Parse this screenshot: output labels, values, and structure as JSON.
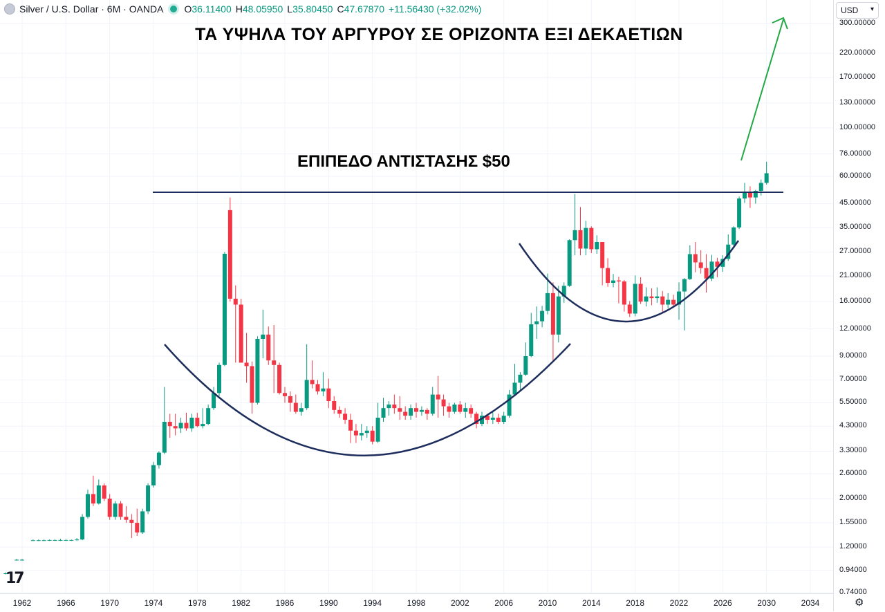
{
  "legend": {
    "symbol": "Silver / U.S. Dollar · 6M · OANDA",
    "o_key": "O",
    "o_val": "36.11400",
    "h_key": "H",
    "h_val": "48.05950",
    "l_key": "L",
    "l_val": "35.80450",
    "c_key": "C",
    "c_val": "47.67870",
    "change": "+11.56430 (+32.02%)"
  },
  "currency": "USD",
  "annotations": {
    "title": "ΤΑ ΥΨΗΛΑ ΤΟΥ ΑΡΓΥΡΟΥ ΣΕ ΟΡΙΖΟΝΤΑ ΕΞΙ ΔΕΚΑΕΤΙΩΝ",
    "resistance_label": "ΕΠΙΠΕΔΟ ΑΝΤΙΣΤΑΣΗΣ $50"
  },
  "colors": {
    "up": "#089981",
    "down": "#f23645",
    "line": "#1e2e5c",
    "arrow": "#22a845",
    "grid": "#f0f3fa"
  },
  "icons": {
    "logo": "tradingview-logo-icon",
    "settings": "gear-icon",
    "dropdown": "chevron-down-icon"
  },
  "chart_data": {
    "type": "candlestick",
    "scale": "log",
    "ylim": [
      0.72,
      320
    ],
    "xlim": [
      1960,
      2036
    ],
    "y_ticks": [
      "300.00000",
      "220.00000",
      "170.00000",
      "130.00000",
      "100.00000",
      "76.00000",
      "60.00000",
      "45.00000",
      "35.00000",
      "27.00000",
      "21.00000",
      "16.00000",
      "12.00000",
      "9.00000",
      "7.00000",
      "5.50000",
      "4.30000",
      "3.30000",
      "2.60000",
      "2.00000",
      "1.55000",
      "1.20000",
      "0.94000",
      "0.74000"
    ],
    "x_ticks": [
      "1962",
      "1966",
      "1970",
      "1974",
      "1978",
      "1982",
      "1986",
      "1990",
      "1994",
      "1998",
      "2002",
      "2006",
      "2010",
      "2014",
      "2018",
      "2022",
      "2026",
      "2030",
      "2034"
    ],
    "resistance_level": 50,
    "candles": [
      {
        "t": 1959.5,
        "o": 0.91,
        "h": 0.92,
        "l": 0.9,
        "c": 0.91
      },
      {
        "t": 1960.5,
        "o": 0.91,
        "h": 0.92,
        "l": 0.9,
        "c": 0.91
      },
      {
        "t": 1961.5,
        "o": 1.05,
        "h": 1.06,
        "l": 1.04,
        "c": 1.05
      },
      {
        "t": 1962,
        "o": 1.05,
        "h": 1.06,
        "l": 1.04,
        "c": 1.05
      },
      {
        "t": 1963,
        "o": 1.29,
        "h": 1.3,
        "l": 1.28,
        "c": 1.29
      },
      {
        "t": 1963.5,
        "o": 1.29,
        "h": 1.3,
        "l": 1.28,
        "c": 1.29
      },
      {
        "t": 1964,
        "o": 1.29,
        "h": 1.3,
        "l": 1.28,
        "c": 1.29
      },
      {
        "t": 1964.5,
        "o": 1.29,
        "h": 1.3,
        "l": 1.28,
        "c": 1.293
      },
      {
        "t": 1965,
        "o": 1.293,
        "h": 1.3,
        "l": 1.28,
        "c": 1.293
      },
      {
        "t": 1965.5,
        "o": 1.293,
        "h": 1.31,
        "l": 1.28,
        "c": 1.293
      },
      {
        "t": 1966,
        "o": 1.293,
        "h": 1.3,
        "l": 1.28,
        "c": 1.293
      },
      {
        "t": 1966.5,
        "o": 1.293,
        "h": 1.3,
        "l": 1.28,
        "c": 1.293
      },
      {
        "t": 1967,
        "o": 1.293,
        "h": 1.32,
        "l": 1.28,
        "c": 1.3
      },
      {
        "t": 1967.5,
        "o": 1.3,
        "h": 1.7,
        "l": 1.29,
        "c": 1.65
      },
      {
        "t": 1968,
        "o": 1.65,
        "h": 2.2,
        "l": 1.62,
        "c": 2.1
      },
      {
        "t": 1968.5,
        "o": 2.1,
        "h": 2.55,
        "l": 1.85,
        "c": 1.9
      },
      {
        "t": 1969,
        "o": 1.9,
        "h": 2.45,
        "l": 1.88,
        "c": 2.3
      },
      {
        "t": 1969.5,
        "o": 2.3,
        "h": 2.35,
        "l": 1.95,
        "c": 2.0
      },
      {
        "t": 1970,
        "o": 2.0,
        "h": 2.1,
        "l": 1.6,
        "c": 1.65
      },
      {
        "t": 1970.5,
        "o": 1.65,
        "h": 1.95,
        "l": 1.6,
        "c": 1.9
      },
      {
        "t": 1971,
        "o": 1.9,
        "h": 1.95,
        "l": 1.6,
        "c": 1.65
      },
      {
        "t": 1971.5,
        "o": 1.65,
        "h": 1.85,
        "l": 1.55,
        "c": 1.6
      },
      {
        "t": 1972,
        "o": 1.6,
        "h": 1.7,
        "l": 1.32,
        "c": 1.55
      },
      {
        "t": 1972.5,
        "o": 1.55,
        "h": 1.8,
        "l": 1.35,
        "c": 1.4
      },
      {
        "t": 1973,
        "o": 1.4,
        "h": 1.8,
        "l": 1.38,
        "c": 1.75
      },
      {
        "t": 1973.5,
        "o": 1.75,
        "h": 2.35,
        "l": 1.7,
        "c": 2.3
      },
      {
        "t": 1974,
        "o": 2.3,
        "h": 2.95,
        "l": 2.25,
        "c": 2.85
      },
      {
        "t": 1974.5,
        "o": 2.85,
        "h": 3.3,
        "l": 2.75,
        "c": 3.25
      },
      {
        "t": 1975,
        "o": 3.25,
        "h": 6.5,
        "l": 3.2,
        "c": 4.5
      },
      {
        "t": 1975.5,
        "o": 4.5,
        "h": 4.9,
        "l": 3.8,
        "c": 4.3
      },
      {
        "t": 1976,
        "o": 4.3,
        "h": 4.9,
        "l": 3.9,
        "c": 4.2
      },
      {
        "t": 1976.5,
        "o": 4.2,
        "h": 4.7,
        "l": 4.0,
        "c": 4.45
      },
      {
        "t": 1977,
        "o": 4.45,
        "h": 4.95,
        "l": 4.1,
        "c": 4.2
      },
      {
        "t": 1977.5,
        "o": 4.2,
        "h": 4.9,
        "l": 4.05,
        "c": 4.7
      },
      {
        "t": 1978,
        "o": 4.7,
        "h": 4.95,
        "l": 4.25,
        "c": 4.3
      },
      {
        "t": 1978.5,
        "o": 4.3,
        "h": 5.2,
        "l": 4.2,
        "c": 4.4
      },
      {
        "t": 1979,
        "o": 4.4,
        "h": 5.4,
        "l": 4.35,
        "c": 5.2
      },
      {
        "t": 1979.5,
        "o": 5.2,
        "h": 6.5,
        "l": 5.1,
        "c": 6.1
      },
      {
        "t": 1980,
        "o": 6.1,
        "h": 8.4,
        "l": 5.9,
        "c": 8.2
      },
      {
        "t": 1980.5,
        "o": 8.2,
        "h": 27.0,
        "l": 8.1,
        "c": 26.5
      },
      {
        "t": 1981,
        "o": 42.0,
        "h": 48.0,
        "l": 16.0,
        "c": 16.5
      },
      {
        "t": 1981.5,
        "o": 16.5,
        "h": 19.0,
        "l": 8.4,
        "c": 15.5
      },
      {
        "t": 1982,
        "o": 15.5,
        "h": 16.5,
        "l": 8.6,
        "c": 8.4
      },
      {
        "t": 1982.5,
        "o": 8.4,
        "h": 11.5,
        "l": 6.8,
        "c": 8.1
      },
      {
        "t": 1983,
        "o": 8.1,
        "h": 8.5,
        "l": 4.9,
        "c": 5.5
      },
      {
        "t": 1983.5,
        "o": 5.5,
        "h": 11.1,
        "l": 5.4,
        "c": 10.8
      },
      {
        "t": 1984,
        "o": 10.8,
        "h": 14.7,
        "l": 8.8,
        "c": 11.3
      },
      {
        "t": 1984.5,
        "o": 11.3,
        "h": 12.3,
        "l": 8.2,
        "c": 8.6
      },
      {
        "t": 1985,
        "o": 8.6,
        "h": 12.5,
        "l": 6.1,
        "c": 8.2
      },
      {
        "t": 1985.5,
        "o": 8.2,
        "h": 8.4,
        "l": 6.0,
        "c": 6.1
      },
      {
        "t": 1986,
        "o": 6.1,
        "h": 6.5,
        "l": 5.5,
        "c": 5.9
      },
      {
        "t": 1986.5,
        "o": 5.9,
        "h": 6.2,
        "l": 5.0,
        "c": 5.5
      },
      {
        "t": 1987,
        "o": 5.5,
        "h": 6.0,
        "l": 4.9,
        "c": 5.0
      },
      {
        "t": 1987.5,
        "o": 5.0,
        "h": 5.5,
        "l": 4.8,
        "c": 5.2
      },
      {
        "t": 1988,
        "o": 5.2,
        "h": 10.2,
        "l": 5.1,
        "c": 7.0
      },
      {
        "t": 1988.5,
        "o": 7.0,
        "h": 8.6,
        "l": 6.4,
        "c": 6.7
      },
      {
        "t": 1989,
        "o": 6.7,
        "h": 7.0,
        "l": 6.0,
        "c": 6.2
      },
      {
        "t": 1989.5,
        "o": 6.2,
        "h": 7.6,
        "l": 5.9,
        "c": 6.4
      },
      {
        "t": 1990,
        "o": 6.4,
        "h": 7.1,
        "l": 5.2,
        "c": 5.6
      },
      {
        "t": 1990.5,
        "o": 5.6,
        "h": 5.9,
        "l": 4.9,
        "c": 5.1
      },
      {
        "t": 1991,
        "o": 5.1,
        "h": 5.3,
        "l": 4.7,
        "c": 4.9
      },
      {
        "t": 1991.5,
        "o": 4.9,
        "h": 5.2,
        "l": 4.4,
        "c": 4.6
      },
      {
        "t": 1992,
        "o": 4.6,
        "h": 4.9,
        "l": 3.6,
        "c": 4.1
      },
      {
        "t": 1992.5,
        "o": 4.1,
        "h": 4.4,
        "l": 3.6,
        "c": 3.9
      },
      {
        "t": 1993,
        "o": 3.9,
        "h": 4.4,
        "l": 3.7,
        "c": 4.0
      },
      {
        "t": 1993.5,
        "o": 4.0,
        "h": 4.3,
        "l": 3.8,
        "c": 4.1
      },
      {
        "t": 1994,
        "o": 4.1,
        "h": 4.3,
        "l": 3.55,
        "c": 3.65
      },
      {
        "t": 1994.5,
        "o": 3.65,
        "h": 5.5,
        "l": 3.6,
        "c": 4.7
      },
      {
        "t": 1995,
        "o": 4.7,
        "h": 5.8,
        "l": 4.5,
        "c": 5.2
      },
      {
        "t": 1995.5,
        "o": 5.2,
        "h": 5.6,
        "l": 4.8,
        "c": 5.4
      },
      {
        "t": 1996,
        "o": 5.4,
        "h": 6.0,
        "l": 4.9,
        "c": 5.2
      },
      {
        "t": 1996.5,
        "o": 5.2,
        "h": 5.9,
        "l": 4.6,
        "c": 5.0
      },
      {
        "t": 1997,
        "o": 5.0,
        "h": 5.3,
        "l": 4.6,
        "c": 4.8
      },
      {
        "t": 1997.5,
        "o": 4.8,
        "h": 5.4,
        "l": 4.6,
        "c": 5.2
      },
      {
        "t": 1998,
        "o": 5.2,
        "h": 5.5,
        "l": 4.7,
        "c": 5.0
      },
      {
        "t": 1998.5,
        "o": 5.0,
        "h": 5.3,
        "l": 4.8,
        "c": 5.1
      },
      {
        "t": 1999,
        "o": 5.1,
        "h": 5.2,
        "l": 4.6,
        "c": 4.9
      },
      {
        "t": 1999.5,
        "o": 4.9,
        "h": 6.5,
        "l": 4.8,
        "c": 6.0
      },
      {
        "t": 2000,
        "o": 6.0,
        "h": 7.3,
        "l": 4.7,
        "c": 5.7
      },
      {
        "t": 2000.5,
        "o": 5.7,
        "h": 6.0,
        "l": 4.8,
        "c": 5.3
      },
      {
        "t": 2001,
        "o": 5.3,
        "h": 5.5,
        "l": 4.7,
        "c": 5.0
      },
      {
        "t": 2001.5,
        "o": 5.0,
        "h": 5.5,
        "l": 4.9,
        "c": 5.4
      },
      {
        "t": 2002,
        "o": 5.4,
        "h": 5.6,
        "l": 4.9,
        "c": 5.0
      },
      {
        "t": 2002.5,
        "o": 5.0,
        "h": 5.5,
        "l": 4.7,
        "c": 5.2
      },
      {
        "t": 2003,
        "o": 5.2,
        "h": 5.4,
        "l": 4.7,
        "c": 4.9
      },
      {
        "t": 2003.5,
        "o": 4.9,
        "h": 5.0,
        "l": 4.2,
        "c": 4.4
      },
      {
        "t": 2004,
        "o": 4.4,
        "h": 5.0,
        "l": 4.3,
        "c": 4.8
      },
      {
        "t": 2004.5,
        "o": 4.8,
        "h": 4.9,
        "l": 4.4,
        "c": 4.6
      },
      {
        "t": 2005,
        "o": 4.6,
        "h": 5.0,
        "l": 4.4,
        "c": 4.7
      },
      {
        "t": 2005.5,
        "o": 4.7,
        "h": 4.9,
        "l": 4.4,
        "c": 4.5
      },
      {
        "t": 2006,
        "o": 4.5,
        "h": 5.0,
        "l": 4.4,
        "c": 4.8
      },
      {
        "t": 2006.5,
        "o": 4.8,
        "h": 6.3,
        "l": 4.7,
        "c": 6.0
      },
      {
        "t": 2007,
        "o": 6.0,
        "h": 8.3,
        "l": 5.9,
        "c": 6.8
      },
      {
        "t": 2007.5,
        "o": 6.8,
        "h": 7.6,
        "l": 6.3,
        "c": 7.4
      },
      {
        "t": 2008,
        "o": 7.4,
        "h": 10.4,
        "l": 7.3,
        "c": 9.0
      },
      {
        "t": 2008.5,
        "o": 9.0,
        "h": 14.2,
        "l": 8.9,
        "c": 12.6
      },
      {
        "t": 2009,
        "o": 12.6,
        "h": 15.2,
        "l": 10.8,
        "c": 13.0
      },
      {
        "t": 2009.5,
        "o": 13.0,
        "h": 15.3,
        "l": 12.2,
        "c": 14.5
      },
      {
        "t": 2010,
        "o": 14.5,
        "h": 21.5,
        "l": 14.0,
        "c": 17.5
      },
      {
        "t": 2010.5,
        "o": 17.5,
        "h": 19.6,
        "l": 8.5,
        "c": 11.3
      },
      {
        "t": 2011,
        "o": 11.3,
        "h": 18.9,
        "l": 10.4,
        "c": 16.9
      },
      {
        "t": 2011.5,
        "o": 16.9,
        "h": 19.6,
        "l": 15.8,
        "c": 18.9
      },
      {
        "t": 2012,
        "o": 18.9,
        "h": 30.9,
        "l": 18.7,
        "c": 30.6
      },
      {
        "t": 2012.5,
        "o": 30.6,
        "h": 49.8,
        "l": 26.1,
        "c": 34.0
      },
      {
        "t": 2013,
        "o": 34.0,
        "h": 43.4,
        "l": 26.1,
        "c": 28.0
      },
      {
        "t": 2013.5,
        "o": 28.0,
        "h": 37.5,
        "l": 26.1,
        "c": 34.8
      },
      {
        "t": 2014,
        "o": 34.8,
        "h": 35.4,
        "l": 26.7,
        "c": 27.8
      },
      {
        "t": 2014.5,
        "o": 27.8,
        "h": 32.2,
        "l": 26.5,
        "c": 30.0
      },
      {
        "t": 2015,
        "o": 30.0,
        "h": 30.0,
        "l": 19.0,
        "c": 22.8
      },
      {
        "t": 2015.5,
        "o": 22.8,
        "h": 25.3,
        "l": 18.7,
        "c": 19.5
      },
      {
        "t": 2016,
        "o": 19.5,
        "h": 21.4,
        "l": 18.6,
        "c": 20.0
      },
      {
        "t": 2016.5,
        "o": 20.0,
        "h": 20.8,
        "l": 15.7,
        "c": 19.8
      },
      {
        "t": 2017,
        "o": 19.8,
        "h": 20.1,
        "l": 14.4,
        "c": 15.5
      },
      {
        "t": 2017.5,
        "o": 15.5,
        "h": 16.1,
        "l": 13.6,
        "c": 14.1
      },
      {
        "t": 2018,
        "o": 14.1,
        "h": 21.1,
        "l": 13.7,
        "c": 19.3
      },
      {
        "t": 2018.5,
        "o": 19.3,
        "h": 20.7,
        "l": 15.6,
        "c": 16.0
      },
      {
        "t": 2019,
        "o": 16.0,
        "h": 18.6,
        "l": 15.2,
        "c": 16.9
      },
      {
        "t": 2019.5,
        "o": 16.9,
        "h": 18.4,
        "l": 15.4,
        "c": 16.6
      },
      {
        "t": 2020,
        "o": 16.6,
        "h": 18.6,
        "l": 15.8,
        "c": 16.9
      },
      {
        "t": 2020.5,
        "o": 16.9,
        "h": 17.9,
        "l": 14.3,
        "c": 15.5
      },
      {
        "t": 2021,
        "o": 15.5,
        "h": 17.5,
        "l": 14.9,
        "c": 16.3
      },
      {
        "t": 2021.5,
        "o": 16.3,
        "h": 17.2,
        "l": 15.2,
        "c": 15.5
      },
      {
        "t": 2022,
        "o": 15.5,
        "h": 19.6,
        "l": 13.2,
        "c": 17.8
      },
      {
        "t": 2022.5,
        "o": 17.8,
        "h": 20.5,
        "l": 11.8,
        "c": 20.3
      },
      {
        "t": 2023,
        "o": 20.3,
        "h": 29.0,
        "l": 20.1,
        "c": 26.4
      },
      {
        "t": 2023.5,
        "o": 26.4,
        "h": 30.0,
        "l": 21.8,
        "c": 24.2
      },
      {
        "t": 2024,
        "o": 24.2,
        "h": 27.5,
        "l": 21.5,
        "c": 22.8
      },
      {
        "t": 2024.5,
        "o": 22.8,
        "h": 26.4,
        "l": 17.6,
        "c": 20.4
      },
      {
        "t": 2025,
        "o": 20.4,
        "h": 26.2,
        "l": 19.9,
        "c": 24.4
      },
      {
        "t": 2025.5,
        "o": 24.4,
        "h": 25.4,
        "l": 20.7,
        "c": 23.1
      },
      {
        "t": 2026,
        "o": 23.1,
        "h": 26.1,
        "l": 21.9,
        "c": 25.1
      },
      {
        "t": 2026.5,
        "o": 25.1,
        "h": 32.5,
        "l": 24.6,
        "c": 29.2
      },
      {
        "t": 2027,
        "o": 29.2,
        "h": 35.4,
        "l": 28.5,
        "c": 35.0
      },
      {
        "t": 2027.5,
        "o": 35.0,
        "h": 48.5,
        "l": 34.4,
        "c": 47.5
      },
      {
        "t": 2028,
        "o": 47.5,
        "h": 56.0,
        "l": 45.3,
        "c": 51.0
      },
      {
        "t": 2028.5,
        "o": 51.0,
        "h": 54.0,
        "l": 43.0,
        "c": 48.0
      },
      {
        "t": 2029,
        "o": 48.0,
        "h": 52.0,
        "l": 45.0,
        "c": 51.5
      },
      {
        "t": 2029.5,
        "o": 51.5,
        "h": 58.0,
        "l": 49.0,
        "c": 56.0
      },
      {
        "t": 2030,
        "o": 56.0,
        "h": 70.0,
        "l": 55.0,
        "c": 62.0
      }
    ]
  }
}
